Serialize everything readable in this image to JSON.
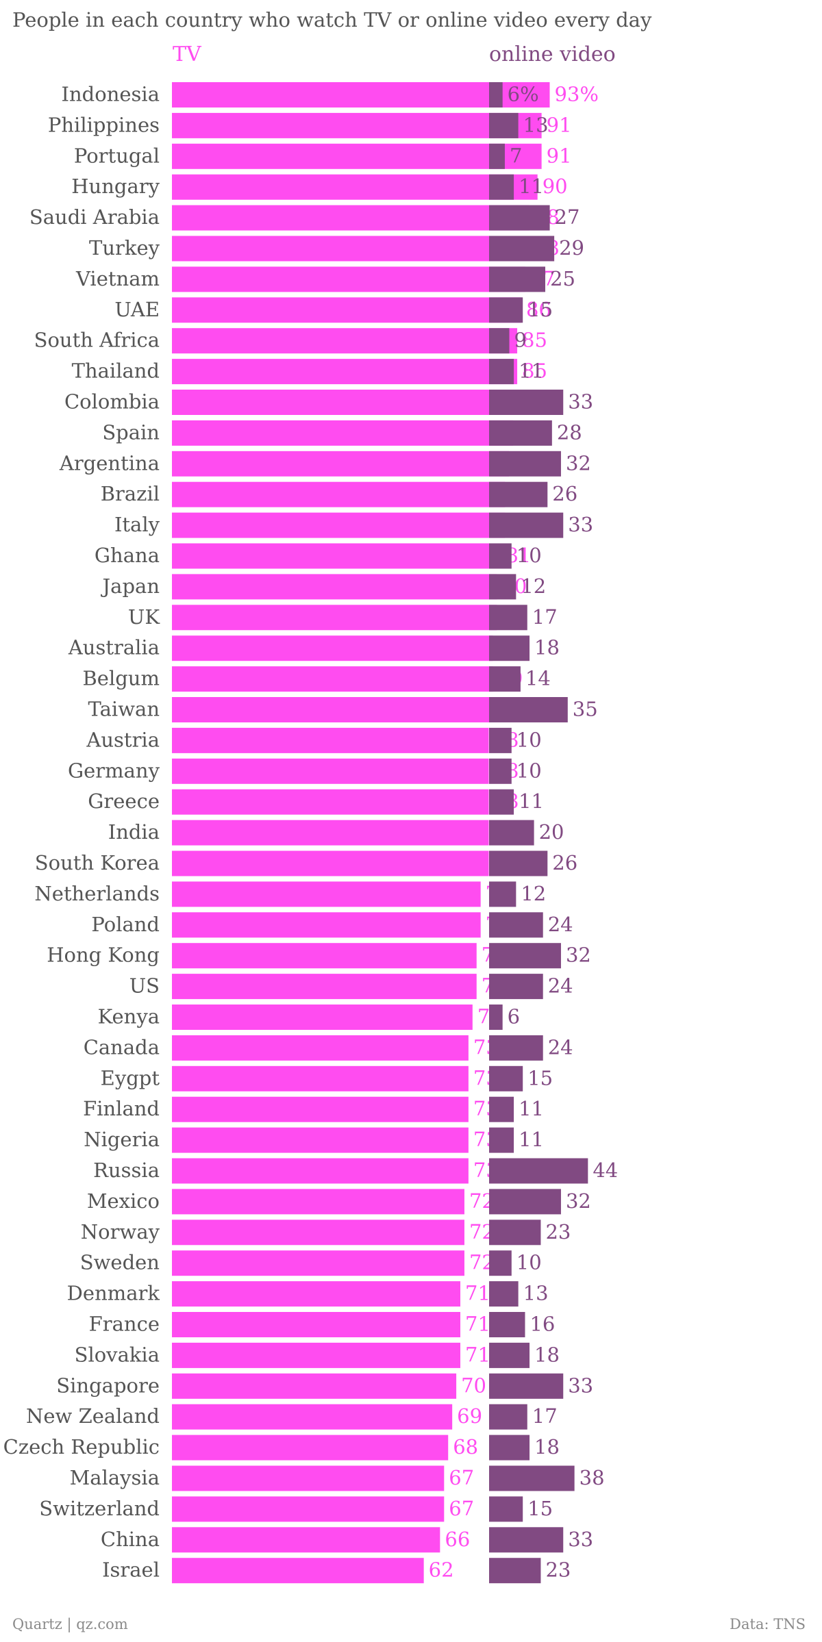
{
  "colors": {
    "tv": "#ff4cf0",
    "online_video": "#814a82",
    "label_text": "#555555"
  },
  "chart_data": {
    "type": "bar",
    "orientation": "horizontal",
    "title": "People in each country who watch TV or online video every day",
    "categories": [
      "Indonesia",
      "Philippines",
      "Portugal",
      "Hungary",
      "Saudi Arabia",
      "Turkey",
      "Vietnam",
      "UAE",
      "South Africa",
      "Thailand",
      "Colombia",
      "Spain",
      "Argentina",
      "Brazil",
      "Italy",
      "Ghana",
      "Japan",
      "UK",
      "Australia",
      "Belgum",
      "Taiwan",
      "Austria",
      "Germany",
      "Greece",
      "India",
      "South Korea",
      "Netherlands",
      "Poland",
      "Hong Kong",
      "US",
      "Kenya",
      "Canada",
      "Eygpt",
      "Finland",
      "Nigeria",
      "Russia",
      "Mexico",
      "Norway",
      "Sweden",
      "Denmark",
      "France",
      "Slovakia",
      "Singapore",
      "New Zealand",
      "Czech Republic",
      "Malaysia",
      "Switzerland",
      "China",
      "Israel"
    ],
    "series": [
      {
        "name": "TV",
        "values": [
          93,
          91,
          91,
          90,
          88,
          88,
          87,
          86,
          85,
          85,
          84,
          84,
          83,
          82,
          82,
          81,
          80,
          80,
          79,
          79,
          79,
          78,
          78,
          78,
          78,
          78,
          76,
          76,
          75,
          75,
          74,
          73,
          73,
          73,
          73,
          73,
          72,
          72,
          72,
          71,
          71,
          71,
          70,
          69,
          68,
          67,
          67,
          66,
          62
        ],
        "labels": [
          "93%",
          "91",
          "91",
          "90",
          "88",
          "88",
          "87",
          "86",
          "85",
          "85",
          "84",
          "84",
          "83",
          "82",
          "82",
          "81",
          "80",
          "80",
          "79",
          "79",
          "79",
          "78",
          "78",
          "78",
          "78",
          "78",
          "76",
          "76",
          "75",
          "75",
          "74",
          "73",
          "73",
          "73",
          "73",
          "73",
          "72",
          "72",
          "72",
          "71",
          "71",
          "71",
          "70",
          "69",
          "68",
          "67",
          "67",
          "66",
          "62"
        ]
      },
      {
        "name": "online video",
        "values": [
          6,
          13,
          7,
          11,
          27,
          29,
          25,
          15,
          9,
          11,
          33,
          28,
          32,
          26,
          33,
          10,
          12,
          17,
          18,
          14,
          35,
          10,
          10,
          11,
          20,
          26,
          12,
          24,
          32,
          24,
          6,
          24,
          15,
          11,
          11,
          44,
          32,
          23,
          10,
          13,
          16,
          18,
          33,
          17,
          18,
          38,
          15,
          33,
          23
        ],
        "labels": [
          "6%",
          "13",
          "7",
          "11",
          "27",
          "29",
          "25",
          "15",
          "9",
          "11",
          "33",
          "28",
          "32",
          "26",
          "33",
          "10",
          "12",
          "17",
          "18",
          "14",
          "35",
          "10",
          "10",
          "11",
          "20",
          "26",
          "12",
          "24",
          "32",
          "24",
          "6",
          "24",
          "15",
          "11",
          "11",
          "44",
          "32",
          "23",
          "10",
          "13",
          "16",
          "18",
          "33",
          "17",
          "18",
          "38",
          "15",
          "33",
          "23"
        ]
      }
    ],
    "unit": "%",
    "source_left": "Quartz | qz.com",
    "source_right": "Data: TNS"
  }
}
